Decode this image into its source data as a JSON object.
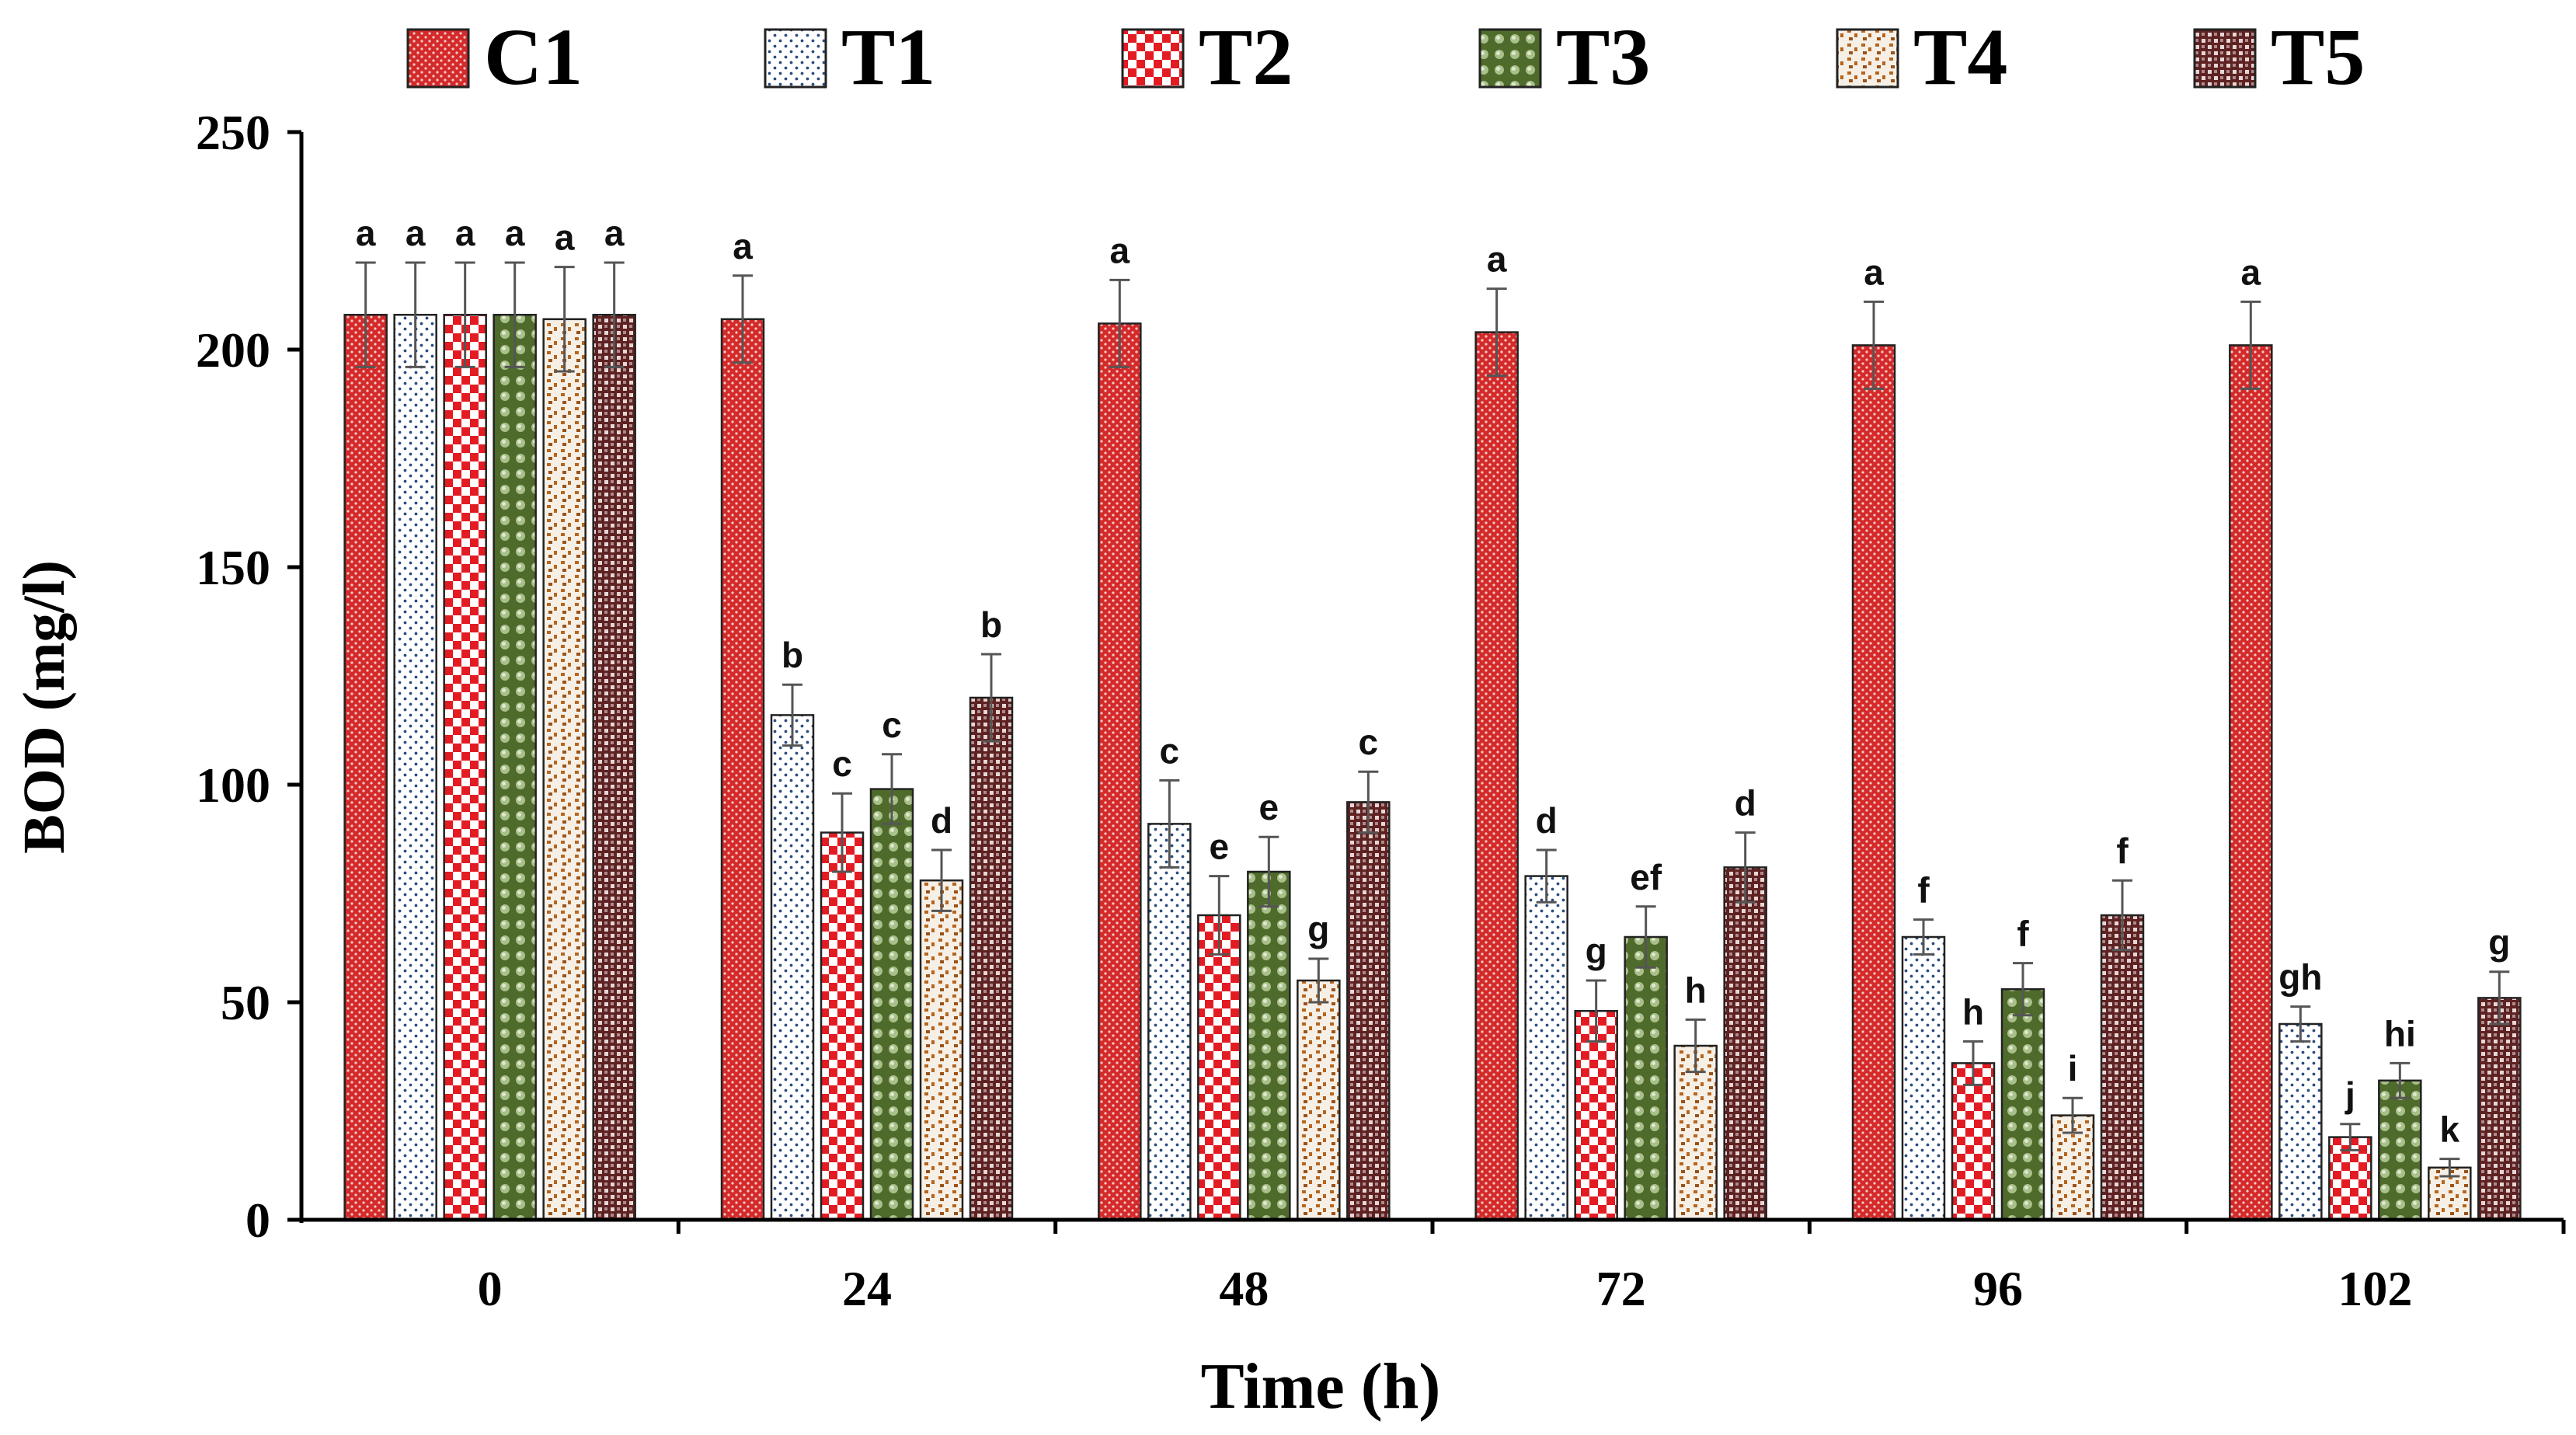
{
  "chart_data": {
    "type": "bar",
    "title": "",
    "xlabel": "Time (h)",
    "ylabel": "BOD (mg/l)",
    "ylim": [
      0,
      250
    ],
    "yticks": [
      0,
      50,
      100,
      150,
      200,
      250
    ],
    "grid": false,
    "legend_position": "top",
    "categories": [
      "0",
      "24",
      "48",
      "72",
      "96",
      "102"
    ],
    "series": [
      {
        "name": "C1",
        "color": "#d42a2a",
        "pattern": "dots-dense",
        "values": [
          208,
          207,
          206,
          204,
          201,
          201
        ],
        "errors": [
          12,
          10,
          10,
          10,
          10,
          10
        ],
        "labels": [
          "a",
          "a",
          "a",
          "a",
          "a",
          "a"
        ]
      },
      {
        "name": "T1",
        "color": "#2b4c7e",
        "pattern": "dots-sparse",
        "values": [
          208,
          116,
          91,
          79,
          65,
          45
        ],
        "errors": [
          12,
          7,
          10,
          6,
          4,
          4
        ],
        "labels": [
          "a",
          "b",
          "c",
          "d",
          "f",
          "gh"
        ]
      },
      {
        "name": "T2",
        "color": "#e31b23",
        "pattern": "checker",
        "values": [
          208,
          89,
          70,
          48,
          36,
          19
        ],
        "errors": [
          12,
          9,
          9,
          7,
          5,
          3
        ],
        "labels": [
          "a",
          "c",
          "e",
          "g",
          "h",
          "j"
        ]
      },
      {
        "name": "T3",
        "color": "#4f6b2c",
        "pattern": "spheres",
        "values": [
          208,
          99,
          80,
          65,
          53,
          32
        ],
        "errors": [
          12,
          8,
          8,
          7,
          6,
          4
        ],
        "labels": [
          "a",
          "c",
          "e",
          "ef",
          "f",
          "hi"
        ]
      },
      {
        "name": "T4",
        "color": "#b5651d",
        "pattern": "confetti",
        "values": [
          207,
          78,
          55,
          40,
          24,
          12
        ],
        "errors": [
          12,
          7,
          5,
          6,
          4,
          2
        ],
        "labels": [
          "a",
          "d",
          "g",
          "h",
          "i",
          "k"
        ]
      },
      {
        "name": "T5",
        "color": "#6b2a2a",
        "pattern": "weave",
        "values": [
          208,
          120,
          96,
          81,
          70,
          51
        ],
        "errors": [
          12,
          10,
          7,
          8,
          8,
          6
        ],
        "labels": [
          "a",
          "b",
          "c",
          "d",
          "f",
          "g"
        ]
      }
    ]
  }
}
